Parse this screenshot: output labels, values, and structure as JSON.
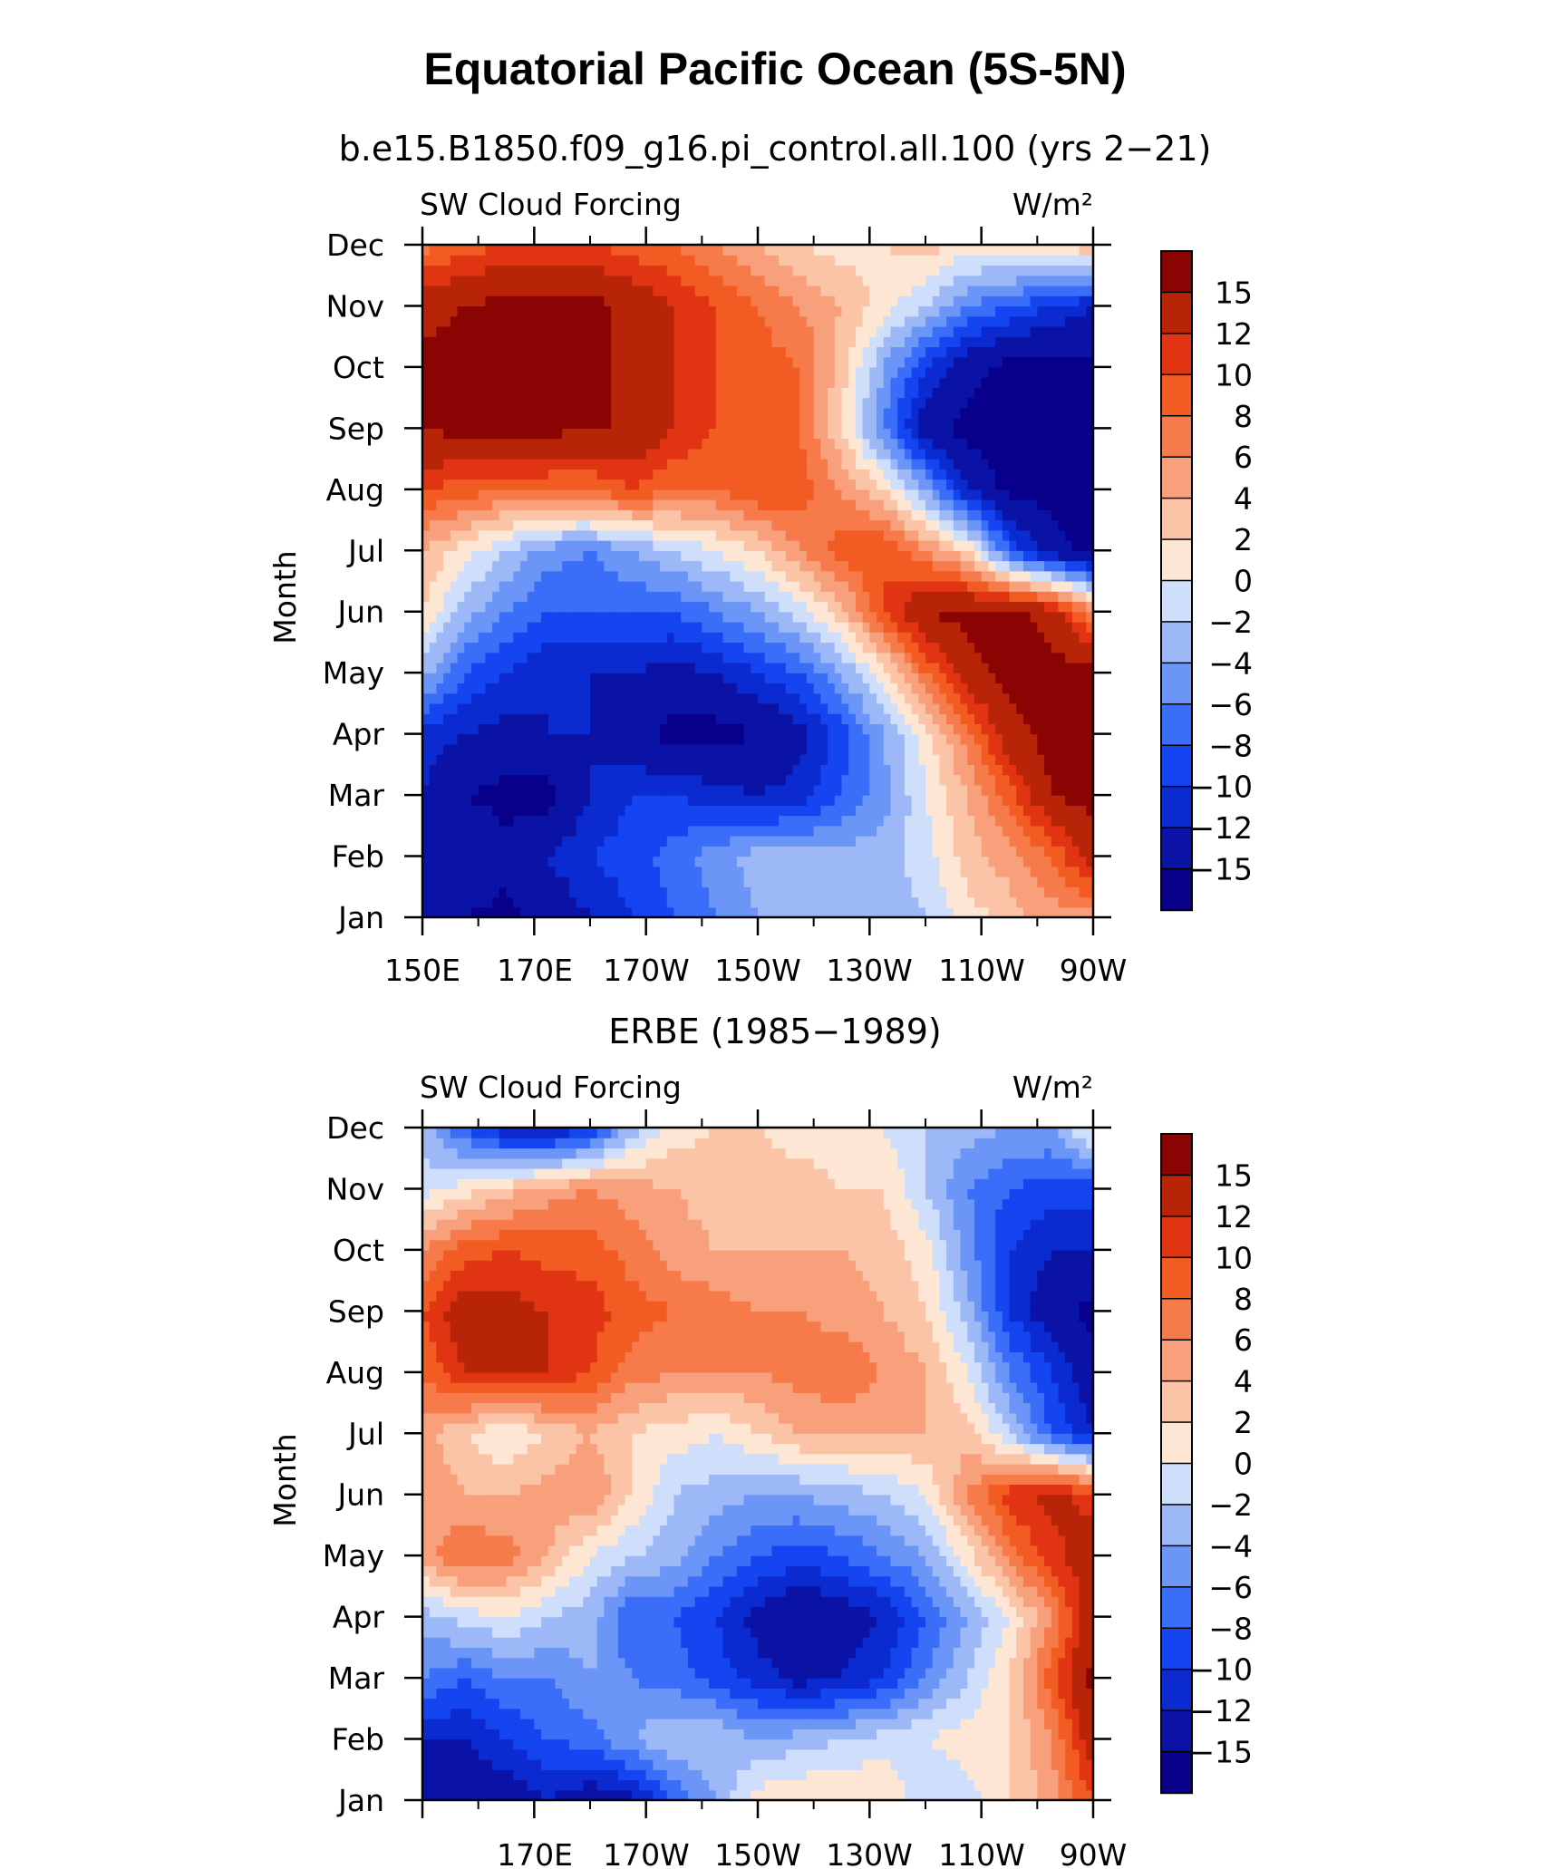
{
  "title": "Equatorial Pacific Ocean (5S-5N)",
  "colorbar_labels": [
    "15",
    "12",
    "10",
    "8",
    "6",
    "4",
    "2",
    "0",
    "−2",
    "−4",
    "−6",
    "−8",
    "−10",
    "−12",
    "−15"
  ],
  "palette": [
    "#08008a",
    "#0a13a6",
    "#0b2bd0",
    "#1545f0",
    "#3a6ef8",
    "#6b96f8",
    "#9db8f6",
    "#cfdefb",
    "#fde6d3",
    "#fcc4a6",
    "#f8a07c",
    "#f67a4a",
    "#f25c22",
    "#e03412",
    "#b82408",
    "#8a0404"
  ],
  "chart_data": [
    {
      "type": "heatmap",
      "subtitle": "b.e15.B1850.f09_g16.pi_control.all.100 (yrs 2−21)",
      "left_label": "SW Cloud Forcing",
      "right_label": "W/m²",
      "ylabel": "Month",
      "y_ticklabels": [
        "Jan",
        "Feb",
        "Mar",
        "Apr",
        "May",
        "Jun",
        "Jul",
        "Aug",
        "Sep",
        "Oct",
        "Nov",
        "Dec"
      ],
      "x_ticklabels": [
        "150E",
        "170E",
        "170W",
        "150W",
        "130W",
        "110W",
        "90W"
      ],
      "xlim": [
        "150E",
        "90W"
      ],
      "ylim": [
        "Jan",
        "Dec"
      ],
      "z": [
        [
          -15,
          -15,
          -16,
          -14,
          -12,
          -10,
          -8,
          -6,
          -4,
          -3,
          -3,
          -3,
          -2,
          1,
          3,
          5,
          5
        ],
        [
          -13,
          -12,
          -14,
          -12,
          -10,
          -9,
          -7,
          -5,
          -3,
          -3,
          -3,
          -3,
          -1,
          3,
          5,
          8,
          14
        ],
        [
          -12,
          -15,
          -16,
          -16,
          -12,
          -10,
          -10,
          -11,
          -12,
          -11,
          -8,
          -5,
          0,
          4,
          9,
          15,
          16
        ],
        [
          -11,
          -12,
          -13,
          -12,
          -12,
          -14,
          -16,
          -16,
          -15,
          -13,
          -9,
          -4,
          1,
          7,
          14,
          16,
          16
        ],
        [
          -3,
          -8,
          -10,
          -12,
          -12,
          -12,
          -13,
          -12,
          -10,
          -8,
          -4,
          1,
          8,
          14,
          16,
          16,
          16
        ],
        [
          2,
          -3,
          -6,
          -8,
          -8,
          -8,
          -8,
          -6,
          -4,
          -1,
          3,
          10,
          15,
          16,
          16,
          14,
          6
        ],
        [
          4,
          1,
          -2,
          -5,
          -6,
          -4,
          -2,
          0,
          2,
          6,
          9,
          10,
          6,
          2,
          -8,
          -14,
          -16
        ],
        [
          10,
          9,
          8,
          8,
          8,
          10,
          8,
          8,
          10,
          9,
          6,
          2,
          -4,
          -12,
          -16,
          -16,
          -16
        ],
        [
          15,
          16,
          16,
          16,
          15,
          15,
          12,
          10,
          10,
          8,
          2,
          -6,
          -14,
          -16,
          -16,
          -16,
          -16
        ],
        [
          16,
          16,
          16,
          16,
          16,
          14,
          12,
          10,
          9,
          8,
          3,
          -4,
          -10,
          -14,
          -16,
          -16,
          -16
        ],
        [
          14,
          15,
          16,
          16,
          16,
          14,
          12,
          10,
          8,
          6,
          4,
          1,
          -2,
          -6,
          -8,
          -10,
          -12
        ],
        [
          7,
          9,
          10,
          10,
          10,
          9,
          8,
          6,
          4,
          2,
          1,
          2,
          3,
          1,
          2,
          2,
          4
        ]
      ]
    },
    {
      "type": "heatmap",
      "subtitle": "ERBE (1985−1989)",
      "left_label": "SW Cloud Forcing",
      "right_label": "W/m²",
      "ylabel": "Month",
      "y_ticklabels": [
        "Jan",
        "Feb",
        "Mar",
        "Apr",
        "May",
        "Jun",
        "Jul",
        "Aug",
        "Sep",
        "Oct",
        "Nov",
        "Dec"
      ],
      "x_ticklabels": [
        "170E",
        "170W",
        "150W",
        "130W",
        "110W",
        "90W"
      ],
      "xlim": [
        "150E",
        "90W"
      ],
      "ylim": [
        "Jan",
        "Dec"
      ],
      "z": [
        [
          -13,
          -14,
          -14,
          -12,
          -14,
          -13,
          -8,
          -4,
          1,
          2,
          2,
          2,
          -2,
          -1,
          2,
          5,
          10
        ],
        [
          -12,
          -12,
          -10,
          -8,
          -7,
          -4,
          -2,
          -2,
          -4,
          -3,
          -2,
          -1,
          0,
          1,
          2,
          6,
          14
        ],
        [
          -6,
          -8,
          -6,
          -6,
          -4,
          -6,
          -7,
          -9,
          -11,
          -13,
          -12,
          -10,
          -6,
          -2,
          2,
          9,
          16
        ],
        [
          -3,
          -1,
          0,
          -2,
          -3,
          -8,
          -8,
          -10,
          -13,
          -15,
          -14,
          -12,
          -8,
          -4,
          0,
          6,
          14
        ],
        [
          5,
          8,
          7,
          4,
          0,
          -2,
          -3,
          -6,
          -8,
          -9,
          -8,
          -6,
          -4,
          1,
          7,
          11,
          14
        ],
        [
          6,
          4,
          4,
          5,
          6,
          2,
          -2,
          -3,
          -4,
          -4,
          -3,
          -2,
          0,
          6,
          11,
          13,
          11
        ],
        [
          5,
          2,
          0,
          2,
          4,
          2,
          1,
          0,
          2,
          4,
          4,
          4,
          4,
          3,
          -2,
          -8,
          -12
        ],
        [
          8,
          12,
          13,
          12,
          10,
          7,
          6,
          6,
          6,
          7,
          8,
          6,
          4,
          0,
          -6,
          -10,
          -14
        ],
        [
          10,
          14,
          13,
          12,
          11,
          9,
          8,
          7,
          6,
          6,
          5,
          4,
          2,
          -3,
          -10,
          -14,
          -16
        ],
        [
          6,
          9,
          10,
          9,
          9,
          7,
          5,
          4,
          4,
          4,
          4,
          3,
          1,
          -5,
          -10,
          -12,
          -12
        ],
        [
          -1,
          1,
          3,
          5,
          6,
          5,
          4,
          3,
          3,
          3,
          2,
          2,
          -2,
          -6,
          -8,
          -9,
          -9
        ],
        [
          -3,
          -8,
          -12,
          -13,
          -10,
          -3,
          1,
          2,
          2,
          1,
          1,
          0,
          -2,
          -3,
          -4,
          -4,
          1
        ]
      ]
    }
  ]
}
